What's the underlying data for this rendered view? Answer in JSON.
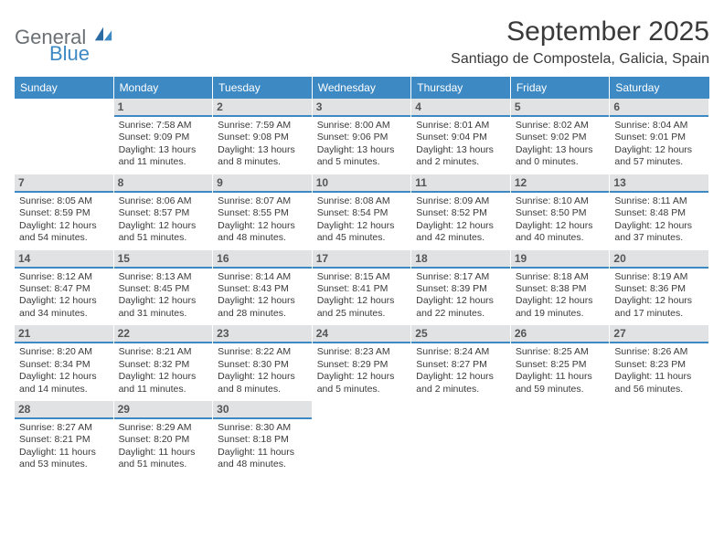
{
  "brand": {
    "general": "General",
    "blue": "Blue"
  },
  "title": "September 2025",
  "location": "Santiago de Compostela, Galicia, Spain",
  "dayHeaders": [
    "Sunday",
    "Monday",
    "Tuesday",
    "Wednesday",
    "Thursday",
    "Friday",
    "Saturday"
  ],
  "colors": {
    "headerBg": "#3d89c4",
    "headerText": "#ffffff",
    "dayBarBg": "#e1e2e3",
    "dayBarBorder": "#3d89c4",
    "bodyText": "#3a3a3a",
    "logoGray": "#6b7074",
    "logoBlue": "#3d89c4",
    "pageBg": "#ffffff"
  },
  "typography": {
    "titleSize": 30,
    "locationSize": 16,
    "headerSize": 12,
    "dayNumSize": 12,
    "infoSize": 10.5,
    "fontFamily": "Arial"
  },
  "layout": {
    "columns": 7,
    "rows": 5,
    "startDayIndex": 1
  },
  "days": [
    {
      "num": "1",
      "sunrise": "Sunrise: 7:58 AM",
      "sunset": "Sunset: 9:09 PM",
      "daylight": "Daylight: 13 hours and 11 minutes."
    },
    {
      "num": "2",
      "sunrise": "Sunrise: 7:59 AM",
      "sunset": "Sunset: 9:08 PM",
      "daylight": "Daylight: 13 hours and 8 minutes."
    },
    {
      "num": "3",
      "sunrise": "Sunrise: 8:00 AM",
      "sunset": "Sunset: 9:06 PM",
      "daylight": "Daylight: 13 hours and 5 minutes."
    },
    {
      "num": "4",
      "sunrise": "Sunrise: 8:01 AM",
      "sunset": "Sunset: 9:04 PM",
      "daylight": "Daylight: 13 hours and 2 minutes."
    },
    {
      "num": "5",
      "sunrise": "Sunrise: 8:02 AM",
      "sunset": "Sunset: 9:02 PM",
      "daylight": "Daylight: 13 hours and 0 minutes."
    },
    {
      "num": "6",
      "sunrise": "Sunrise: 8:04 AM",
      "sunset": "Sunset: 9:01 PM",
      "daylight": "Daylight: 12 hours and 57 minutes."
    },
    {
      "num": "7",
      "sunrise": "Sunrise: 8:05 AM",
      "sunset": "Sunset: 8:59 PM",
      "daylight": "Daylight: 12 hours and 54 minutes."
    },
    {
      "num": "8",
      "sunrise": "Sunrise: 8:06 AM",
      "sunset": "Sunset: 8:57 PM",
      "daylight": "Daylight: 12 hours and 51 minutes."
    },
    {
      "num": "9",
      "sunrise": "Sunrise: 8:07 AM",
      "sunset": "Sunset: 8:55 PM",
      "daylight": "Daylight: 12 hours and 48 minutes."
    },
    {
      "num": "10",
      "sunrise": "Sunrise: 8:08 AM",
      "sunset": "Sunset: 8:54 PM",
      "daylight": "Daylight: 12 hours and 45 minutes."
    },
    {
      "num": "11",
      "sunrise": "Sunrise: 8:09 AM",
      "sunset": "Sunset: 8:52 PM",
      "daylight": "Daylight: 12 hours and 42 minutes."
    },
    {
      "num": "12",
      "sunrise": "Sunrise: 8:10 AM",
      "sunset": "Sunset: 8:50 PM",
      "daylight": "Daylight: 12 hours and 40 minutes."
    },
    {
      "num": "13",
      "sunrise": "Sunrise: 8:11 AM",
      "sunset": "Sunset: 8:48 PM",
      "daylight": "Daylight: 12 hours and 37 minutes."
    },
    {
      "num": "14",
      "sunrise": "Sunrise: 8:12 AM",
      "sunset": "Sunset: 8:47 PM",
      "daylight": "Daylight: 12 hours and 34 minutes."
    },
    {
      "num": "15",
      "sunrise": "Sunrise: 8:13 AM",
      "sunset": "Sunset: 8:45 PM",
      "daylight": "Daylight: 12 hours and 31 minutes."
    },
    {
      "num": "16",
      "sunrise": "Sunrise: 8:14 AM",
      "sunset": "Sunset: 8:43 PM",
      "daylight": "Daylight: 12 hours and 28 minutes."
    },
    {
      "num": "17",
      "sunrise": "Sunrise: 8:15 AM",
      "sunset": "Sunset: 8:41 PM",
      "daylight": "Daylight: 12 hours and 25 minutes."
    },
    {
      "num": "18",
      "sunrise": "Sunrise: 8:17 AM",
      "sunset": "Sunset: 8:39 PM",
      "daylight": "Daylight: 12 hours and 22 minutes."
    },
    {
      "num": "19",
      "sunrise": "Sunrise: 8:18 AM",
      "sunset": "Sunset: 8:38 PM",
      "daylight": "Daylight: 12 hours and 19 minutes."
    },
    {
      "num": "20",
      "sunrise": "Sunrise: 8:19 AM",
      "sunset": "Sunset: 8:36 PM",
      "daylight": "Daylight: 12 hours and 17 minutes."
    },
    {
      "num": "21",
      "sunrise": "Sunrise: 8:20 AM",
      "sunset": "Sunset: 8:34 PM",
      "daylight": "Daylight: 12 hours and 14 minutes."
    },
    {
      "num": "22",
      "sunrise": "Sunrise: 8:21 AM",
      "sunset": "Sunset: 8:32 PM",
      "daylight": "Daylight: 12 hours and 11 minutes."
    },
    {
      "num": "23",
      "sunrise": "Sunrise: 8:22 AM",
      "sunset": "Sunset: 8:30 PM",
      "daylight": "Daylight: 12 hours and 8 minutes."
    },
    {
      "num": "24",
      "sunrise": "Sunrise: 8:23 AM",
      "sunset": "Sunset: 8:29 PM",
      "daylight": "Daylight: 12 hours and 5 minutes."
    },
    {
      "num": "25",
      "sunrise": "Sunrise: 8:24 AM",
      "sunset": "Sunset: 8:27 PM",
      "daylight": "Daylight: 12 hours and 2 minutes."
    },
    {
      "num": "26",
      "sunrise": "Sunrise: 8:25 AM",
      "sunset": "Sunset: 8:25 PM",
      "daylight": "Daylight: 11 hours and 59 minutes."
    },
    {
      "num": "27",
      "sunrise": "Sunrise: 8:26 AM",
      "sunset": "Sunset: 8:23 PM",
      "daylight": "Daylight: 11 hours and 56 minutes."
    },
    {
      "num": "28",
      "sunrise": "Sunrise: 8:27 AM",
      "sunset": "Sunset: 8:21 PM",
      "daylight": "Daylight: 11 hours and 53 minutes."
    },
    {
      "num": "29",
      "sunrise": "Sunrise: 8:29 AM",
      "sunset": "Sunset: 8:20 PM",
      "daylight": "Daylight: 11 hours and 51 minutes."
    },
    {
      "num": "30",
      "sunrise": "Sunrise: 8:30 AM",
      "sunset": "Sunset: 8:18 PM",
      "daylight": "Daylight: 11 hours and 48 minutes."
    }
  ]
}
